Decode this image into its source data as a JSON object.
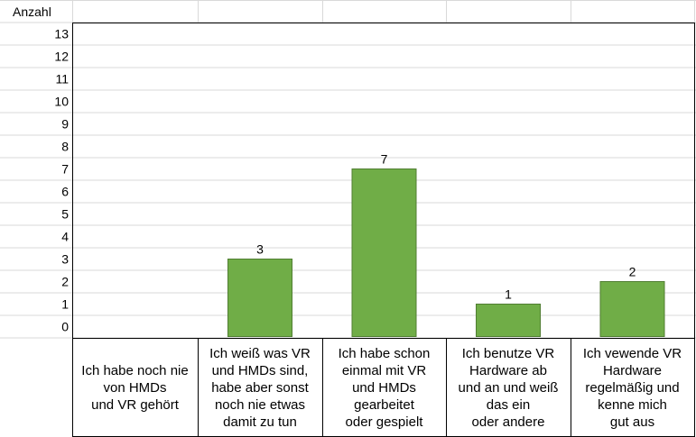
{
  "chart_data": {
    "type": "bar",
    "title": "",
    "ylabel": "Anzahl",
    "xlabel": "",
    "ylim": [
      0,
      13
    ],
    "yticks": [
      0,
      1,
      2,
      3,
      4,
      5,
      6,
      7,
      8,
      9,
      10,
      11,
      12,
      13
    ],
    "grid": true,
    "categories": [
      [
        "Ich habe noch nie",
        "von HMDs",
        "und VR gehört"
      ],
      [
        "Ich weiß was VR",
        "und HMDs sind,",
        "habe aber sonst",
        "noch nie etwas",
        "damit zu tun"
      ],
      [
        "Ich habe schon",
        "einmal mit VR",
        "und HMDs",
        "gearbeitet",
        "oder gespielt"
      ],
      [
        "Ich benutze VR",
        "Hardware ab",
        "und an und weiß",
        "das ein",
        "oder andere"
      ],
      [
        "Ich vewende VR",
        "Hardware",
        "regelmäßig und",
        "kenne mich",
        "gut aus"
      ]
    ],
    "values": [
      0,
      3,
      7,
      1,
      2
    ],
    "data_labels": [
      "",
      "3",
      "7",
      "1",
      "2"
    ],
    "colors": {
      "bar": "#70AD47",
      "bar_border": "#507E32",
      "grid": "#D9D9D9",
      "axis": "#000000"
    }
  }
}
